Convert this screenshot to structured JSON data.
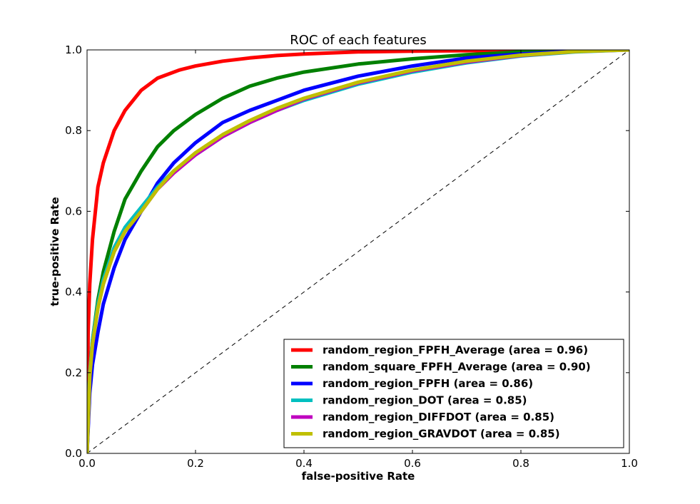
{
  "chart_data": {
    "type": "line",
    "title": "ROC of each features",
    "xlabel": "false-positive Rate",
    "ylabel": "true-positive Rate",
    "xlim": [
      0.0,
      1.0
    ],
    "ylim": [
      0.0,
      1.0
    ],
    "xticks": [
      "0.0",
      "0.2",
      "0.4",
      "0.6",
      "0.8",
      "1.0"
    ],
    "yticks": [
      "0.0",
      "0.2",
      "0.4",
      "0.6",
      "0.8",
      "1.0"
    ],
    "grid": false,
    "legend_position": "lower-right",
    "diagonal_reference": true,
    "series": [
      {
        "name": "random_region_FPFH_Average (area = 0.96)",
        "color": "#ff0000",
        "x": [
          0,
          0.002,
          0.005,
          0.01,
          0.02,
          0.03,
          0.05,
          0.07,
          0.1,
          0.13,
          0.17,
          0.2,
          0.25,
          0.3,
          0.35,
          0.4,
          0.5,
          0.6,
          0.7,
          0.8,
          0.9,
          1.0
        ],
        "y": [
          0,
          0.3,
          0.42,
          0.53,
          0.66,
          0.72,
          0.8,
          0.85,
          0.9,
          0.93,
          0.95,
          0.96,
          0.972,
          0.98,
          0.986,
          0.99,
          0.995,
          0.997,
          0.998,
          0.999,
          1.0,
          1.0
        ]
      },
      {
        "name": "random_square_FPFH_Average (area = 0.90)",
        "color": "#008000",
        "x": [
          0,
          0.005,
          0.01,
          0.02,
          0.03,
          0.05,
          0.07,
          0.1,
          0.13,
          0.16,
          0.2,
          0.25,
          0.3,
          0.35,
          0.4,
          0.5,
          0.6,
          0.7,
          0.8,
          0.9,
          1.0
        ],
        "y": [
          0,
          0.2,
          0.28,
          0.38,
          0.45,
          0.55,
          0.63,
          0.7,
          0.76,
          0.8,
          0.84,
          0.88,
          0.91,
          0.93,
          0.945,
          0.965,
          0.978,
          0.988,
          0.995,
          0.999,
          1.0
        ]
      },
      {
        "name": "random_region_FPFH (area = 0.86)",
        "color": "#0000ff",
        "x": [
          0,
          0.005,
          0.01,
          0.02,
          0.03,
          0.05,
          0.07,
          0.1,
          0.13,
          0.16,
          0.2,
          0.25,
          0.3,
          0.35,
          0.4,
          0.5,
          0.6,
          0.7,
          0.8,
          0.9,
          1.0
        ],
        "y": [
          0,
          0.15,
          0.22,
          0.3,
          0.37,
          0.46,
          0.53,
          0.6,
          0.67,
          0.72,
          0.77,
          0.82,
          0.85,
          0.875,
          0.9,
          0.935,
          0.96,
          0.98,
          0.99,
          0.997,
          1.0
        ]
      },
      {
        "name": "random_region_DOT (area = 0.85)",
        "color": "#00bfbf",
        "x": [
          0,
          0.005,
          0.01,
          0.02,
          0.03,
          0.05,
          0.07,
          0.1,
          0.13,
          0.16,
          0.2,
          0.25,
          0.3,
          0.35,
          0.4,
          0.5,
          0.6,
          0.7,
          0.8,
          0.9,
          1.0
        ],
        "y": [
          0,
          0.2,
          0.28,
          0.37,
          0.43,
          0.51,
          0.56,
          0.61,
          0.66,
          0.7,
          0.74,
          0.785,
          0.82,
          0.85,
          0.875,
          0.915,
          0.945,
          0.968,
          0.985,
          0.995,
          1.0
        ]
      },
      {
        "name": "random_region_DIFFDOT (area = 0.85)",
        "color": "#bf00bf",
        "x": [
          0,
          0.005,
          0.01,
          0.02,
          0.03,
          0.05,
          0.07,
          0.1,
          0.13,
          0.16,
          0.2,
          0.25,
          0.3,
          0.35,
          0.4,
          0.5,
          0.6,
          0.7,
          0.8,
          0.9,
          1.0
        ],
        "y": [
          0,
          0.19,
          0.27,
          0.36,
          0.42,
          0.5,
          0.55,
          0.6,
          0.655,
          0.695,
          0.74,
          0.785,
          0.82,
          0.85,
          0.878,
          0.918,
          0.948,
          0.97,
          0.986,
          0.996,
          1.0
        ]
      },
      {
        "name": "random_region_GRAVDOT (area = 0.85)",
        "color": "#bfbf00",
        "x": [
          0,
          0.005,
          0.01,
          0.02,
          0.03,
          0.05,
          0.07,
          0.1,
          0.13,
          0.16,
          0.2,
          0.25,
          0.3,
          0.35,
          0.4,
          0.5,
          0.6,
          0.7,
          0.8,
          0.9,
          1.0
        ],
        "y": [
          0,
          0.19,
          0.27,
          0.36,
          0.42,
          0.5,
          0.55,
          0.6,
          0.655,
          0.7,
          0.745,
          0.79,
          0.825,
          0.855,
          0.88,
          0.92,
          0.95,
          0.972,
          0.987,
          0.996,
          1.0
        ]
      }
    ]
  }
}
